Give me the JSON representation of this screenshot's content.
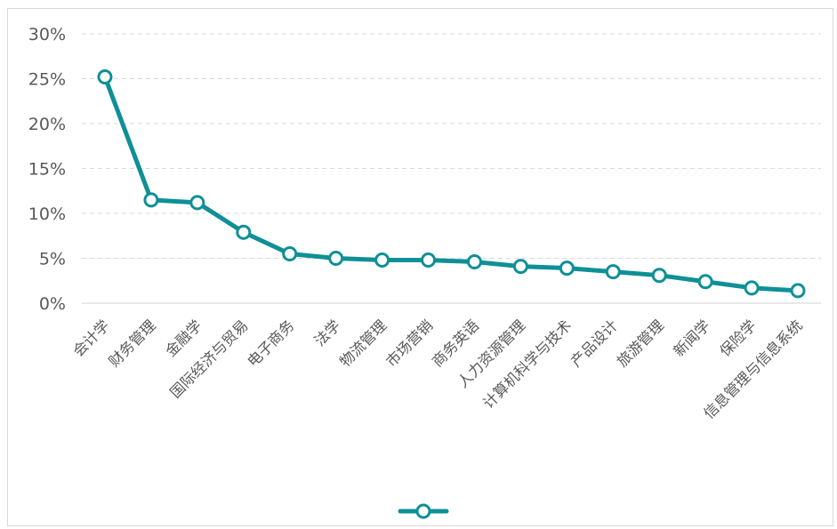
{
  "chart_data": {
    "type": "line",
    "title": "",
    "xlabel": "",
    "ylabel": "",
    "ylim": [
      0,
      0.3
    ],
    "yticks": [
      {
        "value": 0,
        "label": "0%"
      },
      {
        "value": 0.05,
        "label": "5%"
      },
      {
        "value": 0.1,
        "label": "10%"
      },
      {
        "value": 0.15,
        "label": "15%"
      },
      {
        "value": 0.2,
        "label": "20%"
      },
      {
        "value": 0.25,
        "label": "25%"
      },
      {
        "value": 0.3,
        "label": "30%"
      }
    ],
    "grid": "horizontal-dashed",
    "legend_position": "bottom",
    "line_color": "#0e9096",
    "categories": [
      "会计学",
      "财务管理",
      "金融学",
      "国际经济与贸易",
      "电子商务",
      "法学",
      "物流管理",
      "市场营销",
      "商务英语",
      "人力资源管理",
      "计算机科学与技术",
      "产品设计",
      "旅游管理",
      "新闻学",
      "保险学",
      "信息管理与信息系统"
    ],
    "series": [
      {
        "name": "",
        "values": [
          0.252,
          0.115,
          0.112,
          0.079,
          0.055,
          0.05,
          0.048,
          0.048,
          0.046,
          0.041,
          0.039,
          0.035,
          0.031,
          0.024,
          0.017,
          0.014
        ]
      }
    ]
  }
}
